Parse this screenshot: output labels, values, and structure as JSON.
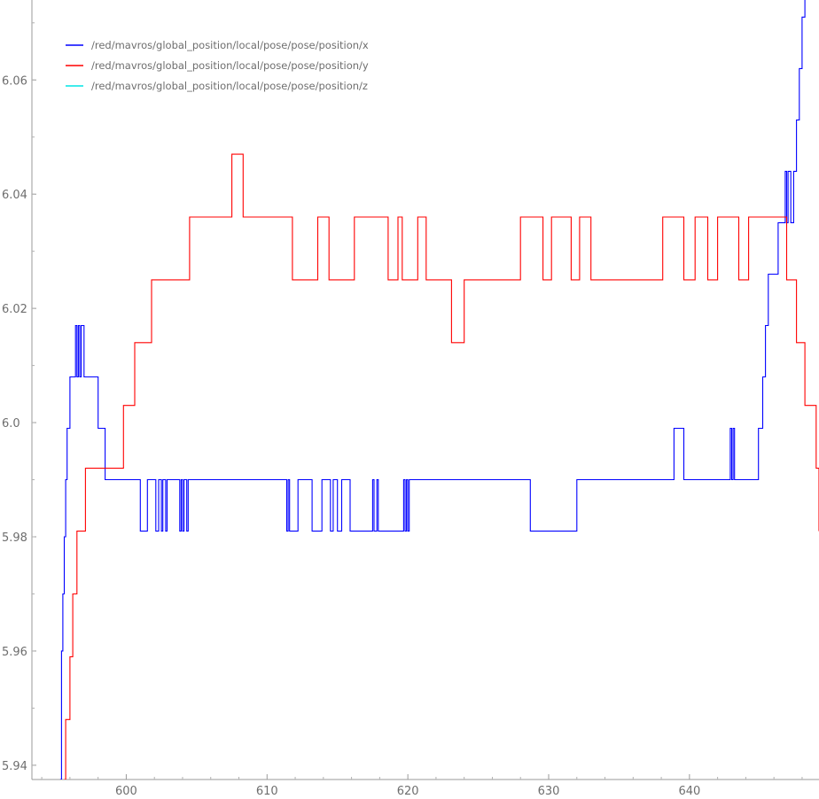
{
  "chart_data": {
    "type": "line",
    "title": "",
    "xlabel": "",
    "ylabel": "",
    "xlim": [
      593.3,
      649.2
    ],
    "ylim": [
      5.9375,
      6.074
    ],
    "xticks": [
      600,
      610,
      620,
      630,
      640
    ],
    "yticks": [
      5.94,
      5.96,
      5.98,
      6.0,
      6.02,
      6.04,
      6.06
    ],
    "ytick_labels": [
      "5.94",
      "5.96",
      "5.98",
      "6.0",
      "6.02",
      "6.04",
      "6.06"
    ],
    "grid": false,
    "legend_position": "top-left",
    "series": [
      {
        "name": "/red/mavros/global_position/local/pose/pose/position/x",
        "color": "#0000ff",
        "step": true,
        "points": [
          [
            595.3,
            5.9375
          ],
          [
            595.4,
            5.96
          ],
          [
            595.5,
            5.97
          ],
          [
            595.6,
            5.98
          ],
          [
            595.7,
            5.99
          ],
          [
            595.8,
            5.999
          ],
          [
            596.0,
            6.008
          ],
          [
            596.4,
            6.017
          ],
          [
            596.5,
            6.008
          ],
          [
            596.6,
            6.017
          ],
          [
            596.7,
            6.008
          ],
          [
            596.8,
            6.017
          ],
          [
            597.0,
            6.008
          ],
          [
            598.0,
            5.999
          ],
          [
            598.5,
            5.99
          ],
          [
            601.0,
            5.981
          ],
          [
            601.5,
            5.99
          ],
          [
            602.1,
            5.981
          ],
          [
            602.3,
            5.99
          ],
          [
            602.5,
            5.981
          ],
          [
            602.6,
            5.99
          ],
          [
            602.8,
            5.981
          ],
          [
            602.9,
            5.99
          ],
          [
            603.8,
            5.981
          ],
          [
            603.9,
            5.99
          ],
          [
            604.0,
            5.981
          ],
          [
            604.1,
            5.99
          ],
          [
            604.3,
            5.981
          ],
          [
            604.4,
            5.99
          ],
          [
            611.4,
            5.981
          ],
          [
            611.5,
            5.99
          ],
          [
            611.6,
            5.981
          ],
          [
            612.2,
            5.99
          ],
          [
            613.2,
            5.981
          ],
          [
            613.9,
            5.99
          ],
          [
            614.5,
            5.981
          ],
          [
            614.7,
            5.99
          ],
          [
            615.0,
            5.981
          ],
          [
            615.3,
            5.99
          ],
          [
            615.9,
            5.981
          ],
          [
            617.5,
            5.99
          ],
          [
            617.6,
            5.981
          ],
          [
            617.8,
            5.99
          ],
          [
            617.9,
            5.981
          ],
          [
            619.7,
            5.99
          ],
          [
            619.8,
            5.981
          ],
          [
            619.9,
            5.99
          ],
          [
            620.0,
            5.981
          ],
          [
            620.1,
            5.99
          ],
          [
            628.7,
            5.981
          ],
          [
            632.0,
            5.99
          ],
          [
            638.9,
            5.999
          ],
          [
            639.6,
            5.99
          ],
          [
            642.9,
            5.999
          ],
          [
            643.0,
            5.99
          ],
          [
            643.1,
            5.999
          ],
          [
            643.2,
            5.99
          ],
          [
            644.9,
            5.999
          ],
          [
            645.2,
            6.008
          ],
          [
            645.4,
            6.017
          ],
          [
            645.6,
            6.026
          ],
          [
            645.8,
            6.026
          ],
          [
            646.3,
            6.035
          ],
          [
            646.8,
            6.044
          ],
          [
            646.9,
            6.035
          ],
          [
            647.0,
            6.044
          ],
          [
            647.2,
            6.035
          ],
          [
            647.4,
            6.044
          ],
          [
            647.6,
            6.053
          ],
          [
            647.8,
            6.062
          ],
          [
            648.0,
            6.071
          ],
          [
            648.2,
            6.074
          ]
        ]
      },
      {
        "name": "/red/mavros/global_position/local/pose/pose/position/y",
        "color": "#ff0000",
        "step": true,
        "points": [
          [
            595.6,
            5.9375
          ],
          [
            595.7,
            5.948
          ],
          [
            596.0,
            5.959
          ],
          [
            596.2,
            5.97
          ],
          [
            596.5,
            5.981
          ],
          [
            597.1,
            5.992
          ],
          [
            599.8,
            6.003
          ],
          [
            600.6,
            6.014
          ],
          [
            601.8,
            6.025
          ],
          [
            604.5,
            6.036
          ],
          [
            607.5,
            6.047
          ],
          [
            608.3,
            6.036
          ],
          [
            611.8,
            6.025
          ],
          [
            613.6,
            6.036
          ],
          [
            614.4,
            6.025
          ],
          [
            616.2,
            6.036
          ],
          [
            618.6,
            6.025
          ],
          [
            619.3,
            6.036
          ],
          [
            619.6,
            6.025
          ],
          [
            620.7,
            6.036
          ],
          [
            621.3,
            6.025
          ],
          [
            623.1,
            6.014
          ],
          [
            624.0,
            6.025
          ],
          [
            628.0,
            6.036
          ],
          [
            629.6,
            6.025
          ],
          [
            630.2,
            6.036
          ],
          [
            631.6,
            6.025
          ],
          [
            632.2,
            6.036
          ],
          [
            633.0,
            6.025
          ],
          [
            638.1,
            6.036
          ],
          [
            639.6,
            6.025
          ],
          [
            640.4,
            6.036
          ],
          [
            641.3,
            6.025
          ],
          [
            642.0,
            6.036
          ],
          [
            643.5,
            6.025
          ],
          [
            644.2,
            6.036
          ],
          [
            646.9,
            6.025
          ],
          [
            647.6,
            6.014
          ],
          [
            648.2,
            6.003
          ],
          [
            649.0,
            5.992
          ],
          [
            649.2,
            5.981
          ]
        ]
      },
      {
        "name": "/red/mavros/global_position/local/pose/pose/position/z",
        "color": "#00e5e5",
        "step": true,
        "points": []
      }
    ]
  }
}
